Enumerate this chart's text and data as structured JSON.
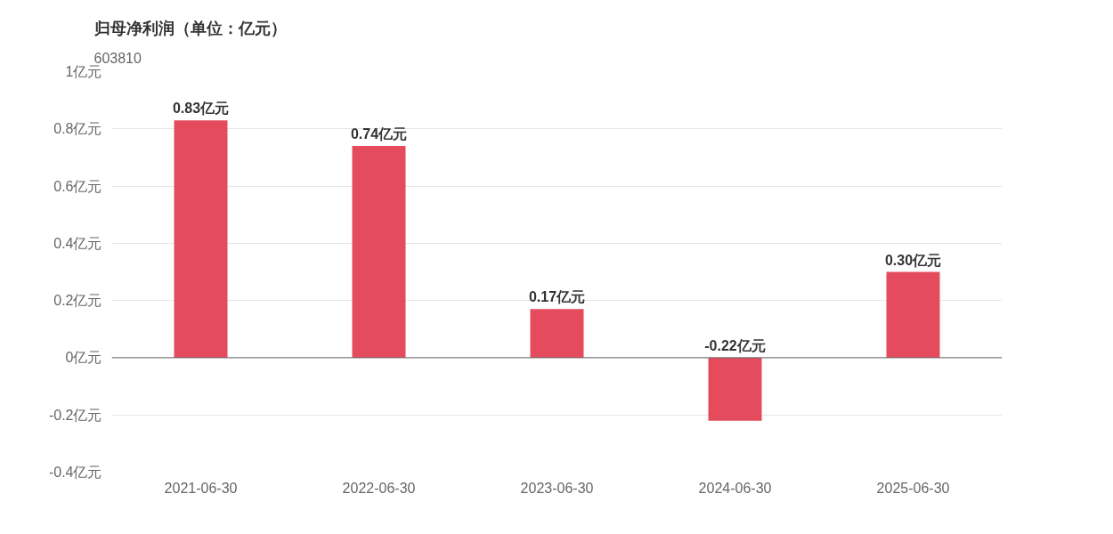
{
  "chart_data": {
    "type": "bar",
    "title": "归母净利润（单位：亿元）",
    "subtitle": "603810",
    "categories": [
      "2021-06-30",
      "2022-06-30",
      "2023-06-30",
      "2024-06-30",
      "2025-06-30"
    ],
    "values": [
      0.83,
      0.74,
      0.17,
      -0.22,
      0.3
    ],
    "value_labels": [
      "0.83亿元",
      "0.74亿元",
      "0.17亿元",
      "-0.22亿元",
      "0.30亿元"
    ],
    "color": "#e44c5e",
    "ylim": [
      -0.4,
      1
    ],
    "yticks": [
      {
        "value": -0.4,
        "label": "-0.4亿元"
      },
      {
        "value": -0.2,
        "label": "-0.2亿元"
      },
      {
        "value": 0,
        "label": "0亿元"
      },
      {
        "value": 0.2,
        "label": "0.2亿元"
      },
      {
        "value": 0.4,
        "label": "0.4亿元"
      },
      {
        "value": 0.6,
        "label": "0.6亿元"
      },
      {
        "value": 0.8,
        "label": "0.8亿元"
      },
      {
        "value": 1,
        "label": "1亿元"
      }
    ],
    "grid": "y"
  }
}
